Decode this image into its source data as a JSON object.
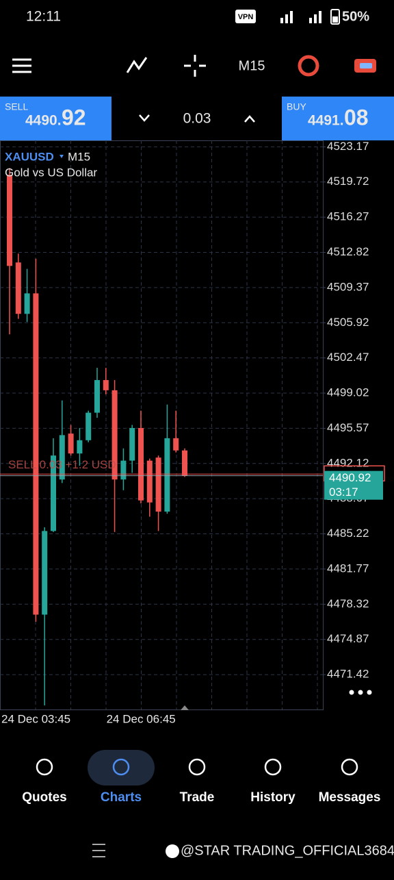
{
  "status_bar": {
    "time": "12:11",
    "vpn": "VPN",
    "battery": "50%"
  },
  "toolbar": {
    "timeframe": "M15"
  },
  "trade_bar": {
    "sell_label": "SELL",
    "sell_main": "4490.",
    "sell_big": "92",
    "volume": "0.03",
    "buy_label": "BUY",
    "buy_main": "4491.",
    "buy_big": "08"
  },
  "chart_data": {
    "type": "candlestick",
    "symbol": "XAUUSD",
    "timeframe": "M15",
    "description": "Gold vs US Dollar",
    "categories": [
      "24 Dec 03:45",
      null,
      null,
      null,
      null,
      null,
      null,
      null,
      null,
      null,
      null,
      null,
      "24 Dec 06:45",
      null,
      null,
      null,
      null,
      null,
      null,
      null,
      null
    ],
    "open": [
      4520.42,
      4511.83,
      4506.79,
      4508.8,
      4477.3,
      4485.5,
      4490.55,
      4495.05,
      4493.1,
      4494.4,
      4497.1,
      4500.3,
      4499.3,
      4490.55,
      4492.4,
      4495.6,
      4492.4,
      4492.7,
      4487.4,
      4494.6,
      4493.4
    ],
    "high": [
      4521.09,
      4512.7,
      4511.2,
      4512.2,
      4485.86,
      4494.6,
      4498.3,
      4495.9,
      4495.6,
      4497.3,
      4501.5,
      4501.5,
      4500.3,
      4493.6,
      4495.9,
      4497.3,
      4492.6,
      4492.9,
      4497.9,
      4497.3,
      4493.6
    ],
    "low": [
      4504.78,
      4506.3,
      4506.0,
      4476.6,
      4468.4,
      4485.4,
      4490.2,
      4492.9,
      4491.9,
      4494.2,
      4496.6,
      4498.9,
      4485.4,
      4489.5,
      4491.2,
      4488.2,
      4486.9,
      4485.5,
      4487.2,
      4493.2,
      4490.8
    ],
    "close": [
      4511.49,
      4506.79,
      4508.8,
      4477.3,
      4485.5,
      4492.9,
      4494.9,
      4493.1,
      4494.4,
      4497.1,
      4500.3,
      4499.3,
      4490.55,
      4492.4,
      4495.6,
      4488.5,
      4488.3,
      4487.4,
      4494.6,
      4493.4,
      4490.9
    ],
    "up_color": "#26a69a",
    "down_color": "#ef5350",
    "ylim": [
      4468.0,
      4523.8
    ],
    "yticks": [
      4523.17,
      4519.72,
      4516.27,
      4512.82,
      4509.37,
      4505.92,
      4502.47,
      4499.02,
      4495.57,
      4492.12,
      4488.67,
      4485.22,
      4481.77,
      4478.32,
      4474.87,
      4471.42
    ],
    "grid": true,
    "bid": 4490.92,
    "ask": 4491.08,
    "countdown": "03:17",
    "position_label": "SELL 0.03  +1.2  USD"
  },
  "nav": {
    "items": [
      "Quotes",
      "Charts",
      "Trade",
      "History",
      "Messages"
    ],
    "active": 1
  },
  "watermark": "@STAR TRADING_OFFICIAL3684"
}
